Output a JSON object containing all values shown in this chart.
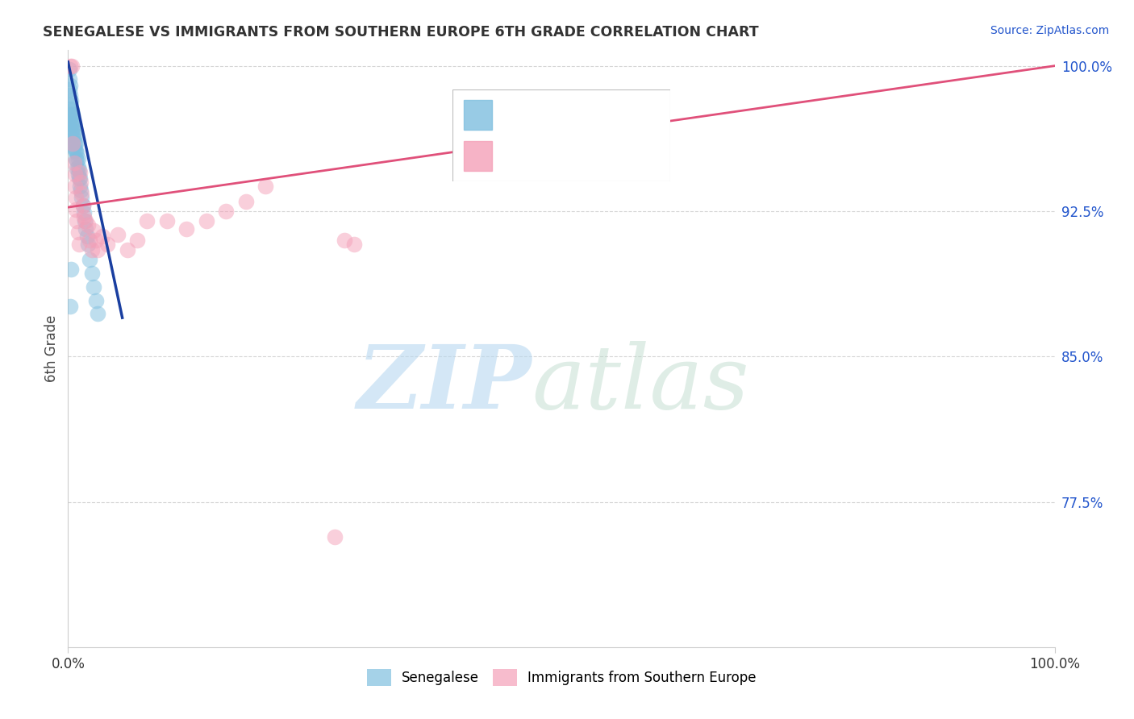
{
  "title": "SENEGALESE VS IMMIGRANTS FROM SOUTHERN EUROPE 6TH GRADE CORRELATION CHART",
  "source_text": "Source: ZipAtlas.com",
  "ylabel": "6th Grade",
  "xlim": [
    0.0,
    1.0
  ],
  "ylim": [
    0.7,
    1.008
  ],
  "x_tick_labels": [
    "0.0%",
    "100.0%"
  ],
  "y_tick_labels_right": [
    "100.0%",
    "92.5%",
    "85.0%",
    "77.5%"
  ],
  "y_tick_values_right": [
    1.0,
    0.925,
    0.85,
    0.775
  ],
  "color_blue": "#7fbfdf",
  "color_pink": "#f4a0b8",
  "color_blue_line": "#1a3fa0",
  "color_pink_line": "#e0507a",
  "color_blue_text": "#2255cc",
  "grid_color": "#cccccc",
  "background_color": "#ffffff",
  "blue_x": [
    0.001,
    0.001,
    0.002,
    0.002,
    0.002,
    0.003,
    0.003,
    0.003,
    0.003,
    0.004,
    0.004,
    0.004,
    0.004,
    0.005,
    0.005,
    0.005,
    0.005,
    0.005,
    0.006,
    0.006,
    0.006,
    0.006,
    0.007,
    0.007,
    0.007,
    0.008,
    0.008,
    0.008,
    0.009,
    0.009,
    0.009,
    0.01,
    0.01,
    0.01,
    0.011,
    0.011,
    0.012,
    0.012,
    0.013,
    0.014,
    0.015,
    0.016,
    0.017,
    0.018,
    0.019,
    0.02,
    0.022,
    0.024,
    0.026,
    0.028,
    0.03,
    0.001,
    0.002,
    0.003
  ],
  "blue_y": [
    0.998,
    0.993,
    0.99,
    0.985,
    0.98,
    0.982,
    0.978,
    0.975,
    0.97,
    0.977,
    0.974,
    0.97,
    0.966,
    0.975,
    0.972,
    0.968,
    0.964,
    0.96,
    0.97,
    0.966,
    0.962,
    0.958,
    0.964,
    0.96,
    0.956,
    0.96,
    0.956,
    0.952,
    0.955,
    0.951,
    0.947,
    0.952,
    0.948,
    0.944,
    0.946,
    0.942,
    0.942,
    0.938,
    0.936,
    0.932,
    0.928,
    0.924,
    0.92,
    0.916,
    0.912,
    0.908,
    0.9,
    0.893,
    0.886,
    0.879,
    0.872,
    0.988,
    0.876,
    0.895
  ],
  "pink_x": [
    0.002,
    0.004,
    0.005,
    0.006,
    0.007,
    0.007,
    0.008,
    0.008,
    0.009,
    0.01,
    0.011,
    0.012,
    0.013,
    0.014,
    0.015,
    0.016,
    0.018,
    0.02,
    0.022,
    0.024,
    0.026,
    0.028,
    0.03,
    0.035,
    0.04,
    0.05,
    0.06,
    0.07,
    0.08,
    0.1,
    0.12,
    0.14,
    0.16,
    0.18,
    0.2,
    0.27,
    0.28,
    0.29
  ],
  "pink_y": [
    1.0,
    1.0,
    0.96,
    0.95,
    0.944,
    0.938,
    0.932,
    0.926,
    0.92,
    0.914,
    0.908,
    0.945,
    0.94,
    0.934,
    0.928,
    0.922,
    0.92,
    0.918,
    0.91,
    0.905,
    0.915,
    0.91,
    0.905,
    0.912,
    0.908,
    0.913,
    0.905,
    0.91,
    0.92,
    0.92,
    0.916,
    0.92,
    0.925,
    0.93,
    0.938,
    0.757,
    0.91,
    0.908
  ],
  "pink_line_x": [
    0.0,
    1.0
  ],
  "pink_line_y": [
    0.927,
    1.0
  ],
  "blue_line_x": [
    0.0,
    0.055
  ],
  "blue_line_y": [
    1.002,
    0.87
  ]
}
